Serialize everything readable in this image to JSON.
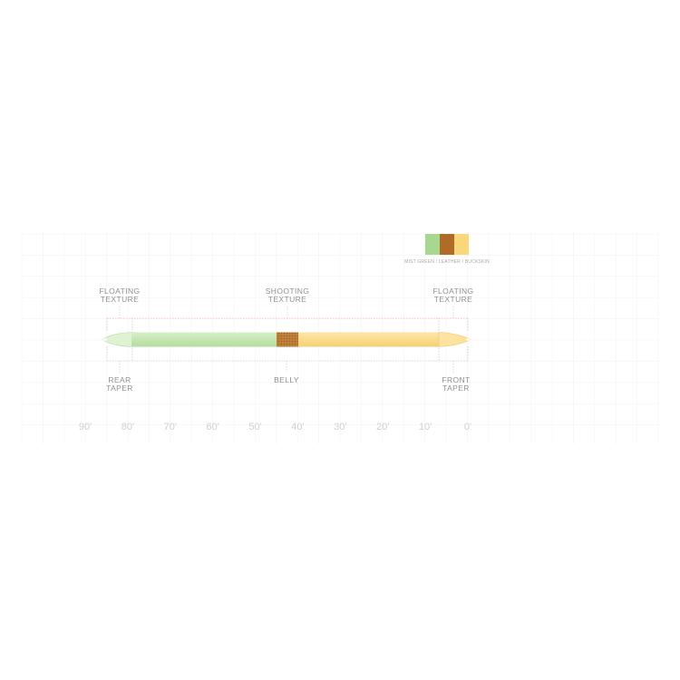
{
  "swatch": {
    "colors": [
      "#a6d98f",
      "#b06b26",
      "#fbd77c"
    ],
    "caption": "MIST GREEN / LEATHER / BUCKSKIN"
  },
  "top_labels": {
    "left_line1": "FLOATING",
    "left_line2": "TEXTURE",
    "middle_line1": "SHOOTING",
    "middle_line2": "TEXTURE",
    "right_line1": "FLOATING",
    "right_line2": "TEXTURE"
  },
  "bottom_labels": {
    "left_line1": "REAR",
    "left_line2": "TAPER",
    "middle_line1": "BELLY",
    "right_line1": "FRONT",
    "right_line2": "TAPER"
  },
  "axis": {
    "ticks": [
      "90'",
      "80'",
      "70'",
      "60'",
      "50'",
      "40'",
      "30'",
      "20'",
      "10'",
      "0'"
    ]
  },
  "line_colors": {
    "mist_green": "#c5e8b4",
    "leather": "#b97a33",
    "buckskin": "#fbdc8e",
    "dashed_outline": "#f0b0b0"
  }
}
